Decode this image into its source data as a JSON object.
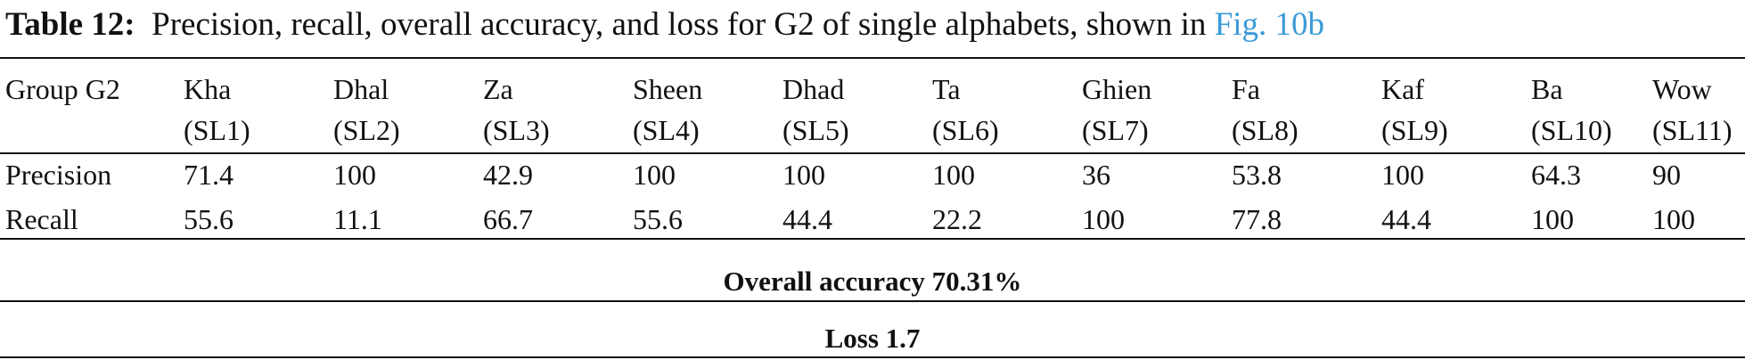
{
  "caption": {
    "label": "Table 12:",
    "text": "Precision, recall, overall accuracy, and loss for G2 of single alphabets, shown in",
    "link": "Fig. 10b"
  },
  "table": {
    "group_label": "Group G2",
    "columns": [
      {
        "name": "Kha",
        "code": "(SL1)"
      },
      {
        "name": "Dhal",
        "code": "(SL2)"
      },
      {
        "name": "Za",
        "code": "(SL3)"
      },
      {
        "name": "Sheen",
        "code": "(SL4)"
      },
      {
        "name": "Dhad",
        "code": "(SL5)"
      },
      {
        "name": "Ta",
        "code": "(SL6)"
      },
      {
        "name": "Ghien",
        "code": "(SL7)"
      },
      {
        "name": "Fa",
        "code": "(SL8)"
      },
      {
        "name": "Kaf",
        "code": "(SL9)"
      },
      {
        "name": "Ba",
        "code": "(SL10)"
      },
      {
        "name": "Wow",
        "code": "(SL11)"
      }
    ],
    "rows": [
      {
        "label": "Precision",
        "values": [
          "71.4",
          "100",
          "42.9",
          "100",
          "100",
          "100",
          "36",
          "53.8",
          "100",
          "64.3",
          "90"
        ]
      },
      {
        "label": "Recall",
        "values": [
          "55.6",
          "11.1",
          "66.7",
          "55.6",
          "44.4",
          "22.2",
          "100",
          "77.8",
          "44.4",
          "100",
          "100"
        ]
      }
    ],
    "overall_accuracy": "Overall accuracy 70.31%",
    "loss": "Loss 1.7"
  }
}
